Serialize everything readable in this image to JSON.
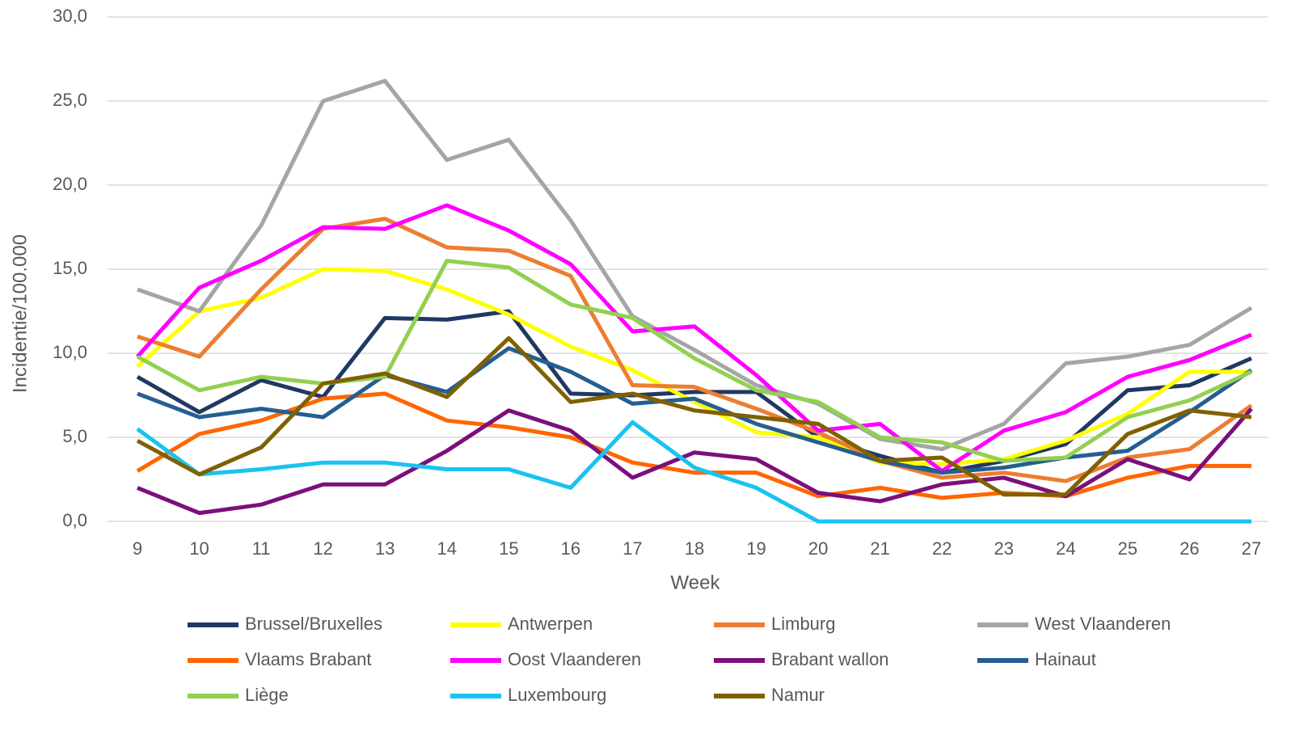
{
  "chart_data": {
    "type": "line",
    "x_label": "Week",
    "y_label": "Incidentie/100.000",
    "categories": [
      "9",
      "10",
      "11",
      "12",
      "13",
      "14",
      "15",
      "16",
      "17",
      "18",
      "19",
      "20",
      "21",
      "22",
      "23",
      "24",
      "25",
      "26",
      "27"
    ],
    "ylim": [
      0,
      30
    ],
    "yticks": [
      {
        "value": 0,
        "label": "0,0"
      },
      {
        "value": 5,
        "label": "5,0"
      },
      {
        "value": 10,
        "label": "10,0"
      },
      {
        "value": 15,
        "label": "15,0"
      },
      {
        "value": 20,
        "label": "20,0"
      },
      {
        "value": 25,
        "label": "25,0"
      },
      {
        "value": 30,
        "label": "30,0"
      }
    ],
    "grid": true,
    "legend": "bottom",
    "series": [
      {
        "name": "Brussel/Bruxelles",
        "color": "#203864",
        "values": [
          8.6,
          6.5,
          8.4,
          7.4,
          12.1,
          12.0,
          12.5,
          7.6,
          7.5,
          7.7,
          7.7,
          5.0,
          3.9,
          2.9,
          3.6,
          4.6,
          7.8,
          8.1,
          9.7
        ]
      },
      {
        "name": "Antwerpen",
        "color": "#ffff00",
        "values": [
          9.2,
          12.5,
          13.3,
          15.0,
          14.9,
          13.8,
          12.3,
          10.4,
          9.0,
          7.1,
          5.3,
          5.0,
          3.5,
          3.4,
          3.7,
          4.8,
          6.4,
          8.9,
          8.9
        ]
      },
      {
        "name": "Limburg",
        "color": "#ed7d31",
        "values": [
          11.0,
          9.8,
          13.8,
          17.4,
          18.0,
          16.3,
          16.1,
          14.6,
          8.1,
          8.0,
          6.7,
          5.3,
          3.6,
          2.6,
          2.9,
          2.4,
          3.8,
          4.3,
          6.9
        ]
      },
      {
        "name": "West Vlaanderen",
        "color": "#a5a5a5",
        "values": [
          13.8,
          12.5,
          17.6,
          25.0,
          26.2,
          21.5,
          22.7,
          17.9,
          12.2,
          10.2,
          8.1,
          7.0,
          4.9,
          4.3,
          5.8,
          9.4,
          9.8,
          10.5,
          12.7
        ]
      },
      {
        "name": "Vlaams Brabant",
        "color": "#ff6600",
        "values": [
          3.0,
          5.2,
          6.0,
          7.3,
          7.6,
          6.0,
          5.6,
          5.0,
          3.5,
          2.9,
          2.9,
          1.5,
          2.0,
          1.4,
          1.7,
          1.5,
          2.6,
          3.3,
          3.3
        ]
      },
      {
        "name": "Oost Vlaanderen",
        "color": "#ff00ff",
        "values": [
          9.8,
          13.9,
          15.5,
          17.5,
          17.4,
          18.8,
          17.3,
          15.3,
          11.3,
          11.6,
          8.7,
          5.4,
          5.8,
          3.0,
          5.4,
          6.5,
          8.6,
          9.6,
          11.1
        ]
      },
      {
        "name": "Brabant wallon",
        "color": "#7b0f7b",
        "values": [
          2.0,
          0.5,
          1.0,
          2.2,
          2.2,
          4.2,
          6.6,
          5.4,
          2.6,
          4.1,
          3.7,
          1.7,
          1.2,
          2.2,
          2.6,
          1.5,
          3.7,
          2.5,
          6.7
        ]
      },
      {
        "name": "Hainaut",
        "color": "#255e91",
        "values": [
          7.6,
          6.2,
          6.7,
          6.2,
          8.7,
          7.7,
          10.3,
          8.9,
          7.0,
          7.3,
          5.8,
          4.7,
          3.6,
          2.9,
          3.2,
          3.8,
          4.2,
          6.5,
          9.0
        ]
      },
      {
        "name": "Liège",
        "color": "#92d050",
        "values": [
          9.8,
          7.8,
          8.6,
          8.2,
          8.6,
          15.5,
          15.1,
          12.9,
          12.1,
          9.7,
          7.8,
          7.1,
          5.0,
          4.7,
          3.6,
          3.8,
          6.2,
          7.2,
          8.9
        ]
      },
      {
        "name": "Luxembourg",
        "color": "#19c3f0",
        "values": [
          5.5,
          2.8,
          3.1,
          3.5,
          3.5,
          3.1,
          3.1,
          2.0,
          5.9,
          3.2,
          2.0,
          0,
          0,
          0,
          0,
          0,
          0,
          0,
          0
        ]
      },
      {
        "name": "Namur",
        "color": "#806000",
        "values": [
          4.8,
          2.8,
          4.4,
          8.2,
          8.8,
          7.4,
          10.9,
          7.1,
          7.6,
          6.6,
          6.2,
          5.8,
          3.6,
          3.8,
          1.6,
          1.6,
          5.2,
          6.6,
          6.2
        ]
      }
    ]
  }
}
